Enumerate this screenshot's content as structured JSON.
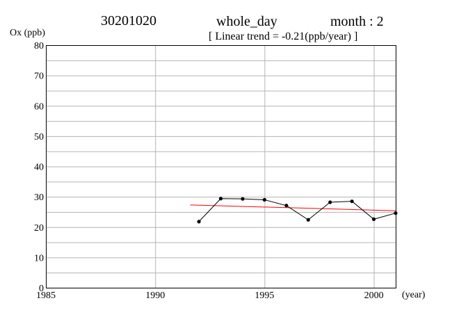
{
  "header": {
    "station": "30201020",
    "period": "whole_day",
    "month_label": "month : 2",
    "trend_label": "[ Linear trend = -0.21(ppb/year) ]"
  },
  "chart_data": {
    "type": "line",
    "ylabel": "Ox (ppb)",
    "xlabel": "(year)",
    "xlim": [
      1985,
      2001
    ],
    "ylim": [
      0,
      80
    ],
    "x_ticks": [
      1985,
      1990,
      1995,
      2000
    ],
    "y_ticks": [
      0,
      10,
      20,
      30,
      40,
      50,
      60,
      70,
      80
    ],
    "y_minor_step": 5,
    "grid": true,
    "series": [
      {
        "x": [
          1992,
          1993,
          1994,
          1995,
          1996,
          1997,
          1998,
          1999,
          2000,
          2001
        ],
        "values": [
          21.8,
          29.4,
          29.3,
          29.0,
          27.1,
          22.4,
          28.2,
          28.5,
          22.6,
          24.6
        ],
        "color": "#000000",
        "markers": true
      }
    ],
    "trend": {
      "x": [
        1991.6,
        2001
      ],
      "values": [
        27.3,
        25.4
      ],
      "color": "#ff0000"
    }
  }
}
